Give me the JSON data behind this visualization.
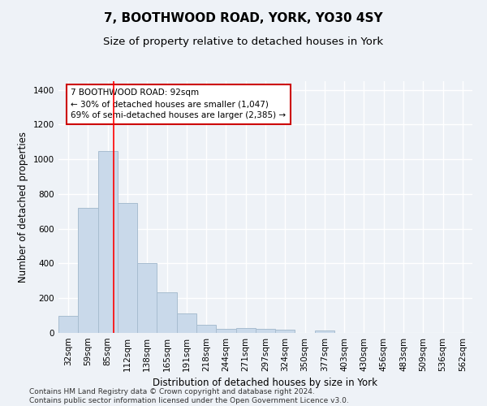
{
  "title": "7, BOOTHWOOD ROAD, YORK, YO30 4SY",
  "subtitle": "Size of property relative to detached houses in York",
  "xlabel": "Distribution of detached houses by size in York",
  "ylabel": "Number of detached properties",
  "categories": [
    "32sqm",
    "59sqm",
    "85sqm",
    "112sqm",
    "138sqm",
    "165sqm",
    "191sqm",
    "218sqm",
    "244sqm",
    "271sqm",
    "297sqm",
    "324sqm",
    "350sqm",
    "377sqm",
    "403sqm",
    "430sqm",
    "456sqm",
    "483sqm",
    "509sqm",
    "536sqm",
    "562sqm"
  ],
  "values": [
    100,
    720,
    1050,
    750,
    400,
    235,
    110,
    45,
    25,
    30,
    25,
    20,
    0,
    15,
    0,
    0,
    0,
    0,
    0,
    0,
    0
  ],
  "bar_color": "#c9d9ea",
  "bar_edge_color": "#a8bdd0",
  "red_line_x": 2.3,
  "annotation_text": "7 BOOTHWOOD ROAD: 92sqm\n← 30% of detached houses are smaller (1,047)\n69% of semi-detached houses are larger (2,385) →",
  "annotation_box_color": "#ffffff",
  "annotation_border_color": "#cc0000",
  "ylim": [
    0,
    1450
  ],
  "yticks": [
    0,
    200,
    400,
    600,
    800,
    1000,
    1200,
    1400
  ],
  "footer": "Contains HM Land Registry data © Crown copyright and database right 2024.\nContains public sector information licensed under the Open Government Licence v3.0.",
  "bg_color": "#eef2f7",
  "grid_color": "#ffffff",
  "title_fontsize": 11,
  "subtitle_fontsize": 9.5,
  "axis_label_fontsize": 8.5,
  "tick_fontsize": 7.5,
  "footer_fontsize": 6.5
}
